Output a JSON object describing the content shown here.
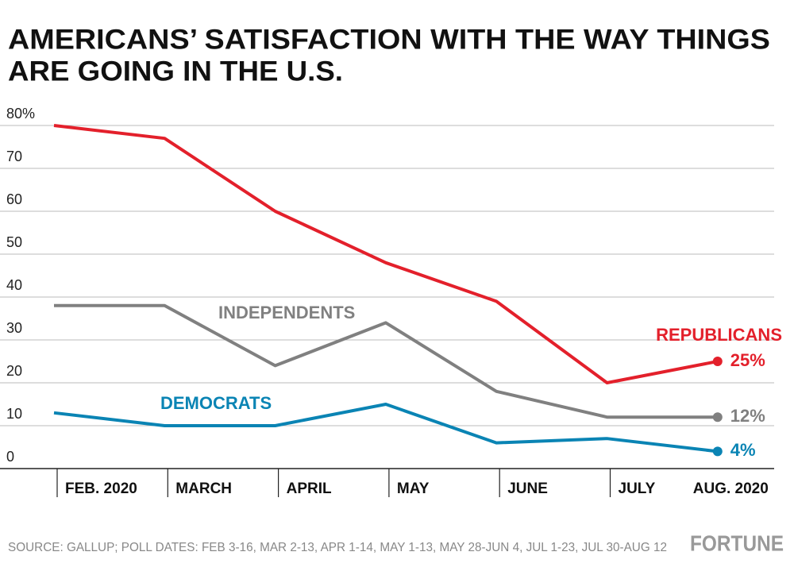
{
  "chart_data": {
    "type": "line",
    "title": [
      "AMERICANS’ SATISFACTION WITH THE WAY THINGS",
      "ARE GOING IN THE U.S."
    ],
    "categories": [
      "FEB. 2020",
      "MARCH",
      "APRIL",
      "MAY",
      "JUNE",
      "JULY",
      "AUG. 2020"
    ],
    "series": [
      {
        "name": "REPUBLICANS",
        "color": "#e3202b",
        "values": [
          80,
          77,
          60,
          48,
          39,
          20,
          25
        ],
        "value_labels": [
          null,
          null,
          null,
          null,
          null,
          null,
          "25%"
        ]
      },
      {
        "name": "INDEPENDENTS",
        "color": "#808080",
        "values": [
          38,
          38,
          24,
          34,
          18,
          12,
          12
        ],
        "value_labels": [
          null,
          null,
          null,
          null,
          null,
          null,
          "12%"
        ]
      },
      {
        "name": "DEMOCRATS",
        "color": "#0a84b4",
        "values": [
          13,
          10,
          10,
          15,
          6,
          7,
          4
        ],
        "value_labels": [
          null,
          null,
          null,
          null,
          null,
          null,
          "4%"
        ]
      }
    ],
    "ylim": [
      0,
      80
    ],
    "yticks": [
      0,
      10,
      20,
      30,
      40,
      50,
      60,
      70,
      {
        "value": 80,
        "label": "80%"
      }
    ],
    "grid": true,
    "source": "SOURCE: GALLUP; POLL DATES: FEB 3-16, MAR 2-13, APR 1-14, MAY 1-13, MAY 28-JUN 4, JUL 1-23, JUL 30-AUG 12",
    "brand": "FORTUNE"
  }
}
